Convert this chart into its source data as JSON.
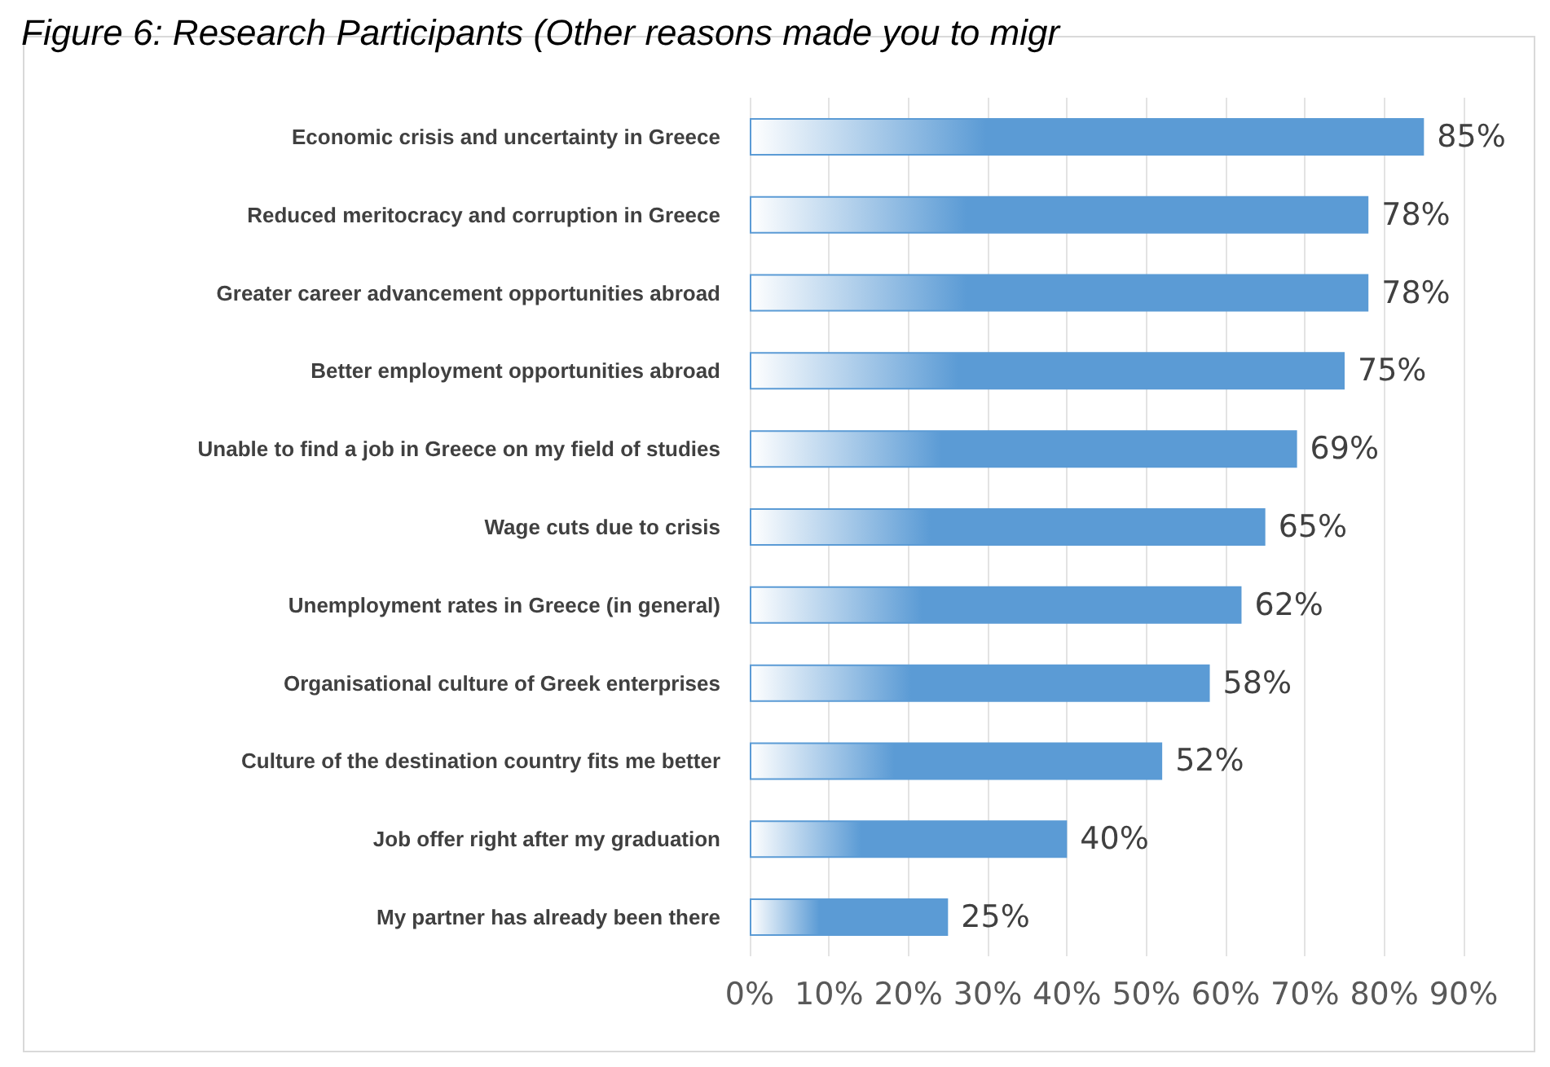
{
  "chart_data": {
    "type": "bar",
    "orientation": "horizontal",
    "title": "Figure 6: Research Participants (Other reasons made you to migr",
    "categories": [
      "Economic crisis and uncertainty in Greece",
      "Reduced meritocracy and corruption in Greece",
      "Greater career advancement opportunities abroad",
      "Better employment opportunities abroad",
      "Unable to find a job in Greece on my field of studies",
      "Wage cuts due to crisis",
      "Unemployment rates in Greece (in general)",
      "Organisational culture of Greek enterprises",
      "Culture of the destination country fits me better",
      "Job offer right after my graduation",
      "My partner has already been there"
    ],
    "values": [
      85,
      78,
      78,
      75,
      69,
      65,
      62,
      58,
      52,
      40,
      25
    ],
    "value_labels": [
      "85%",
      "78%",
      "78%",
      "75%",
      "69%",
      "65%",
      "62%",
      "58%",
      "52%",
      "40%",
      "25%"
    ],
    "color": "#5b9bd5",
    "xlim": [
      0,
      90
    ],
    "xticks": [
      {
        "value": 0,
        "label": "0%"
      },
      {
        "value": 10,
        "label": "10%"
      },
      {
        "value": 20,
        "label": "20%"
      },
      {
        "value": 30,
        "label": "30%"
      },
      {
        "value": 40,
        "label": "40%"
      },
      {
        "value": 50,
        "label": "50%"
      },
      {
        "value": 60,
        "label": "60%"
      },
      {
        "value": 70,
        "label": "70%"
      },
      {
        "value": 80,
        "label": "80%"
      },
      {
        "value": 90,
        "label": "90%"
      }
    ],
    "grid": "x"
  }
}
